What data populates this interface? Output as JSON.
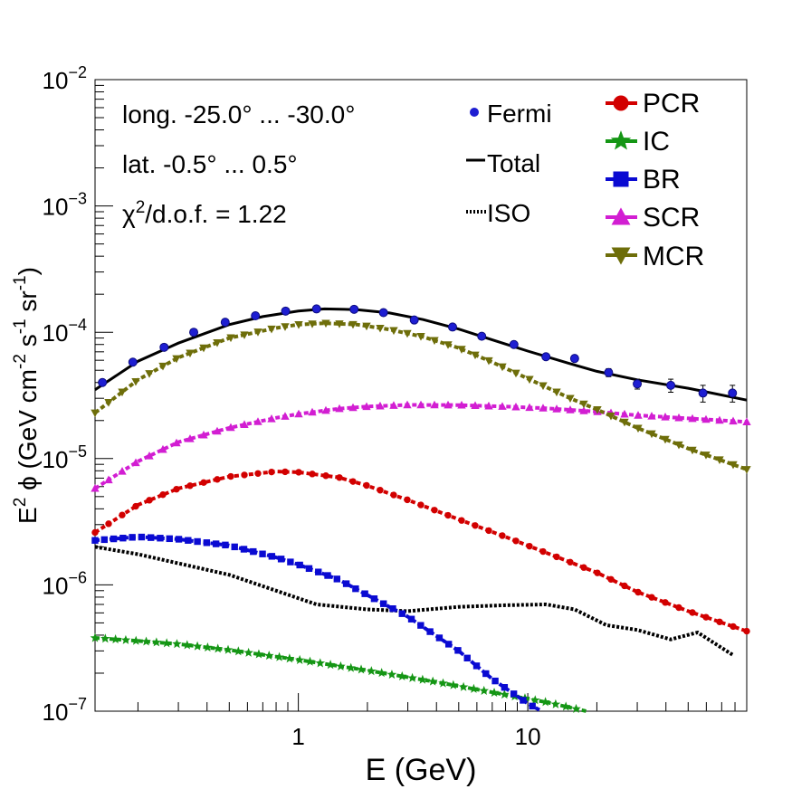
{
  "chart_data": {
    "type": "line",
    "x_scale": "log",
    "y_scale": "log",
    "xlim": [
      0.13,
      90
    ],
    "ylim": [
      1e-07,
      0.01
    ],
    "xlabel": "E (GeV)",
    "ylabel": {
      "base": "E",
      "sup1": "2",
      "rest": " ϕ (GeV cm",
      "sup2": "-2",
      "mid": " s",
      "sup3": "-1",
      "mid2": " sr",
      "sup4": "-1",
      "end": ")"
    },
    "x_tick_labels": [
      {
        "value": 1,
        "label": "1"
      },
      {
        "value": 10,
        "label": "10"
      }
    ],
    "y_tick_labels": [
      {
        "value": 1e-07,
        "base": "10",
        "exp": "−7"
      },
      {
        "value": 1e-06,
        "base": "10",
        "exp": "−6"
      },
      {
        "value": 1e-05,
        "base": "10",
        "exp": "−5"
      },
      {
        "value": 0.0001,
        "base": "10",
        "exp": "−4"
      },
      {
        "value": 0.001,
        "base": "10",
        "exp": "−3"
      },
      {
        "value": 0.01,
        "base": "10",
        "exp": "−2"
      }
    ],
    "annotations": {
      "longitude": "long. -25.0° ... -30.0°",
      "latitude": "lat. -0.5° ... 0.5°",
      "chi2_prefix": "χ",
      "chi2_sup": "2",
      "chi2_suffix": "/d.o.f. = 1.22"
    },
    "legend_left": [
      {
        "label": "Fermi",
        "style": "point",
        "color": "#1e1ed2"
      },
      {
        "label": "Total",
        "style": "solid",
        "color": "#000000"
      },
      {
        "label": "ISO",
        "style": "dotted",
        "color": "#000000"
      }
    ],
    "legend_right": [
      {
        "label": "PCR",
        "marker": "circle",
        "color": "#d20000"
      },
      {
        "label": "IC",
        "marker": "star",
        "color": "#159615"
      },
      {
        "label": "BR",
        "marker": "square",
        "color": "#0a0ad2"
      },
      {
        "label": "SCR",
        "marker": "triangle-up",
        "color": "#d21ed2"
      },
      {
        "label": "MCR",
        "marker": "triangle-down",
        "color": "#6e6e0a"
      }
    ],
    "fermi_points": {
      "x": [
        0.14,
        0.19,
        0.26,
        0.35,
        0.48,
        0.65,
        0.88,
        1.2,
        1.75,
        2.35,
        3.2,
        4.7,
        6.3,
        8.7,
        12.0,
        16.0,
        22.5,
        30.0,
        42.0,
        58.0,
        78.0
      ],
      "y": [
        4e-05,
        5.8e-05,
        7.6e-05,
        0.0001,
        0.00012,
        0.000135,
        0.000147,
        0.000153,
        0.000152,
        0.000143,
        0.000125,
        0.00011,
        9.3e-05,
        8e-05,
        6.4e-05,
        6.2e-05,
        4.8e-05,
        3.9e-05,
        3.8e-05,
        3.3e-05,
        3.3e-05
      ],
      "err_lo": [
        0,
        0,
        0,
        0,
        0,
        0,
        0,
        0,
        0,
        0,
        0,
        0,
        0,
        0,
        0,
        0,
        3.5e-06,
        3.5e-06,
        4.5e-06,
        5e-06,
        5e-06
      ],
      "err_hi": [
        0,
        0,
        0,
        0,
        0,
        0,
        0,
        0,
        0,
        0,
        0,
        0,
        0,
        0,
        0,
        0,
        3.5e-06,
        3.5e-06,
        4.5e-06,
        5e-06,
        5e-06
      ]
    },
    "series": [
      {
        "name": "Total",
        "style": "solid",
        "color": "#000000",
        "marker": "none",
        "x": [
          0.13,
          0.2,
          0.3,
          0.5,
          0.7,
          1.0,
          1.3,
          1.8,
          2.5,
          3.5,
          5.0,
          7.0,
          10.0,
          15.0,
          20.0,
          30.0,
          50.0,
          90.0
        ],
        "y": [
          3.5e-05,
          5.9e-05,
          8.2e-05,
          0.000115,
          0.000133,
          0.000147,
          0.000153,
          0.000151,
          0.000142,
          0.000126,
          0.000106,
          8.7e-05,
          7.1e-05,
          5.7e-05,
          4.9e-05,
          4.2e-05,
          3.6e-05,
          2.9e-05
        ]
      },
      {
        "name": "ISO",
        "style": "dotted",
        "color": "#000000",
        "marker": "none",
        "x": [
          0.13,
          0.2,
          0.3,
          0.5,
          0.8,
          1.2,
          2.0,
          3.0,
          5.0,
          8.0,
          12.0,
          16.0,
          22.0,
          30.0,
          42.0,
          55.0,
          78.0
        ],
        "y": [
          2e-06,
          1.75e-06,
          1.48e-06,
          1.2e-06,
          9e-07,
          7e-07,
          6.4e-07,
          6.2e-07,
          6.7e-07,
          6.9e-07,
          7e-07,
          6.4e-07,
          4.8e-07,
          4.4e-07,
          3.7e-07,
          4.2e-07,
          2.8e-07
        ]
      },
      {
        "name": "PCR",
        "style": "dashed",
        "color": "#d20000",
        "marker": "circle",
        "x": [
          0.13,
          0.2,
          0.3,
          0.5,
          0.8,
          1.0,
          1.5,
          2.0,
          3.0,
          5.0,
          8.0,
          12.0,
          20.0,
          30.0,
          50.0,
          90.0
        ],
        "y": [
          2.6e-06,
          4.3e-06,
          5.8e-06,
          7.2e-06,
          7.9e-06,
          7.8e-06,
          7.1e-06,
          6.1e-06,
          4.7e-06,
          3.3e-06,
          2.4e-06,
          1.8e-06,
          1.25e-06,
          8.8e-07,
          6.2e-07,
          4.3e-07
        ]
      },
      {
        "name": "IC",
        "style": "dashed",
        "color": "#159615",
        "marker": "star",
        "x": [
          0.13,
          0.2,
          0.3,
          0.5,
          1.0,
          2.0,
          4.0,
          8.0,
          12.0,
          18.0
        ],
        "y": [
          3.8e-07,
          3.6e-07,
          3.4e-07,
          3.05e-07,
          2.55e-07,
          2.1e-07,
          1.7e-07,
          1.35e-07,
          1.18e-07,
          1e-07
        ]
      },
      {
        "name": "BR",
        "style": "dashed",
        "color": "#0a0ad2",
        "marker": "square",
        "x": [
          0.13,
          0.2,
          0.3,
          0.5,
          0.8,
          1.0,
          1.5,
          2.0,
          3.0,
          5.0,
          7.0,
          10.0,
          11.5
        ],
        "y": [
          2.25e-06,
          2.4e-06,
          2.3e-06,
          2.05e-06,
          1.65e-06,
          1.45e-06,
          1.1e-06,
          8.3e-07,
          5.6e-07,
          3e-07,
          1.8e-07,
          1.15e-07,
          1e-07
        ]
      },
      {
        "name": "SCR",
        "style": "dashed",
        "color": "#d21ed2",
        "marker": "triangle-up",
        "x": [
          0.13,
          0.2,
          0.3,
          0.5,
          0.8,
          1.0,
          1.5,
          2.0,
          3.0,
          5.0,
          8.0,
          12.0,
          20.0,
          30.0,
          50.0,
          90.0
        ],
        "y": [
          5.8e-06,
          9.5e-06,
          1.35e-05,
          1.75e-05,
          2.1e-05,
          2.25e-05,
          2.48e-05,
          2.58e-05,
          2.66e-05,
          2.65e-05,
          2.58e-05,
          2.5e-05,
          2.35e-05,
          2.2e-05,
          2.08e-05,
          1.95e-05
        ]
      },
      {
        "name": "MCR",
        "style": "dashed",
        "color": "#6e6e0a",
        "marker": "triangle-down",
        "x": [
          0.13,
          0.2,
          0.3,
          0.5,
          0.8,
          1.0,
          1.3,
          1.8,
          2.5,
          3.5,
          5.0,
          7.0,
          10.0,
          15.0,
          20.0,
          30.0,
          50.0,
          90.0
        ],
        "y": [
          2.3e-05,
          4.2e-05,
          6.3e-05,
          9e-05,
          0.000108,
          0.000115,
          0.000118,
          0.000115,
          0.000105,
          9.2e-05,
          7.5e-05,
          5.8e-05,
          4.3e-05,
          3.05e-05,
          2.45e-05,
          1.75e-05,
          1.2e-05,
          8.2e-06
        ]
      }
    ]
  }
}
